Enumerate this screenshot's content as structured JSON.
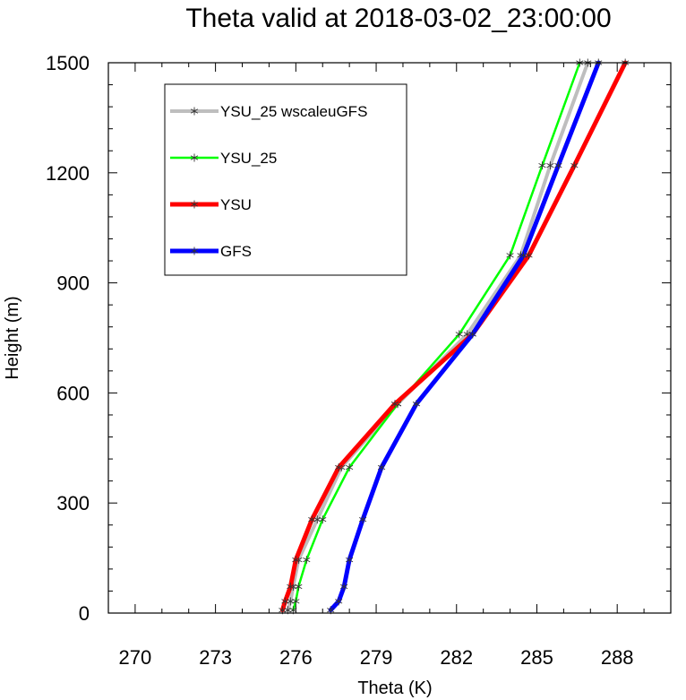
{
  "chart_data": {
    "type": "line",
    "title": "Theta valid at 2018-03-02_23:00:00",
    "xlabel": "Theta (K)",
    "ylabel": "Height (m)",
    "xlim": [
      269,
      290
    ],
    "ylim": [
      0,
      1500
    ],
    "xticks": [
      270,
      273,
      276,
      279,
      282,
      285,
      288
    ],
    "yticks": [
      0,
      300,
      600,
      900,
      1200,
      1500
    ],
    "grid": false,
    "legend_position": "top-left",
    "series": [
      {
        "name": "YSU_25 wscaleuGFS",
        "color": "#bebebe",
        "width": 4,
        "points": [
          [
            275.7,
            8
          ],
          [
            275.8,
            32
          ],
          [
            275.9,
            72
          ],
          [
            276.1,
            145
          ],
          [
            276.8,
            255
          ],
          [
            277.7,
            397
          ],
          [
            279.8,
            570
          ],
          [
            282.4,
            760
          ],
          [
            284.4,
            975
          ],
          [
            285.5,
            1220
          ],
          [
            286.9,
            1500
          ]
        ]
      },
      {
        "name": "YSU_25",
        "color": "#00ff00",
        "width": 2.5,
        "points": [
          [
            275.9,
            8
          ],
          [
            276.0,
            32
          ],
          [
            276.1,
            72
          ],
          [
            276.4,
            145
          ],
          [
            277.0,
            255
          ],
          [
            278.0,
            397
          ],
          [
            279.8,
            570
          ],
          [
            282.1,
            760
          ],
          [
            284.0,
            975
          ],
          [
            285.2,
            1220
          ],
          [
            286.6,
            1500
          ]
        ]
      },
      {
        "name": "YSU",
        "color": "#ff0000",
        "width": 5,
        "points": [
          [
            275.5,
            8
          ],
          [
            275.6,
            32
          ],
          [
            275.8,
            72
          ],
          [
            276.0,
            145
          ],
          [
            276.6,
            255
          ],
          [
            277.6,
            397
          ],
          [
            279.7,
            570
          ],
          [
            282.6,
            760
          ],
          [
            284.7,
            975
          ],
          [
            286.4,
            1220
          ],
          [
            288.3,
            1500
          ]
        ]
      },
      {
        "name": "GFS",
        "color": "#0000ff",
        "width": 5,
        "points": [
          [
            277.3,
            8
          ],
          [
            277.6,
            32
          ],
          [
            277.8,
            72
          ],
          [
            278.0,
            145
          ],
          [
            278.5,
            255
          ],
          [
            279.2,
            397
          ],
          [
            280.5,
            570
          ],
          [
            282.6,
            760
          ],
          [
            284.5,
            975
          ],
          [
            285.8,
            1220
          ],
          [
            287.3,
            1500
          ]
        ]
      }
    ]
  }
}
